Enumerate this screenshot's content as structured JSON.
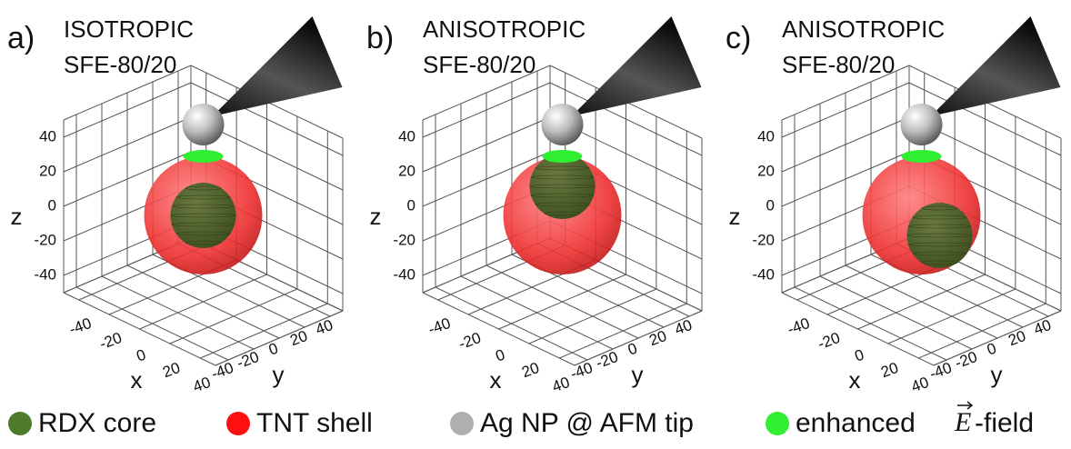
{
  "panels": [
    {
      "label": "a)",
      "title": [
        "ISOTROPIC",
        "SFE-80/20"
      ]
    },
    {
      "label": "b)",
      "title": [
        "ANISOTROPIC",
        "SFE-80/20"
      ]
    },
    {
      "label": "c)",
      "title": [
        "ANISOTROPIC",
        "SFE-80/20"
      ]
    }
  ],
  "axes": {
    "x_label": "x",
    "y_label": "y",
    "z_label": "z",
    "z_ticks": [
      "40",
      "20",
      "0",
      "-20",
      "-40"
    ],
    "x_ticks": [
      "-40",
      "-20",
      "0",
      "20",
      "40"
    ],
    "y_ticks": [
      "-40",
      "-20",
      "0",
      "20",
      "40"
    ]
  },
  "legend": [
    {
      "label": "RDX core"
    },
    {
      "label": "TNT shell"
    },
    {
      "label": "Ag NP @ AFM tip"
    },
    {
      "label": "enhanced",
      "symbol": "E",
      "suffix": "-field"
    }
  ]
}
